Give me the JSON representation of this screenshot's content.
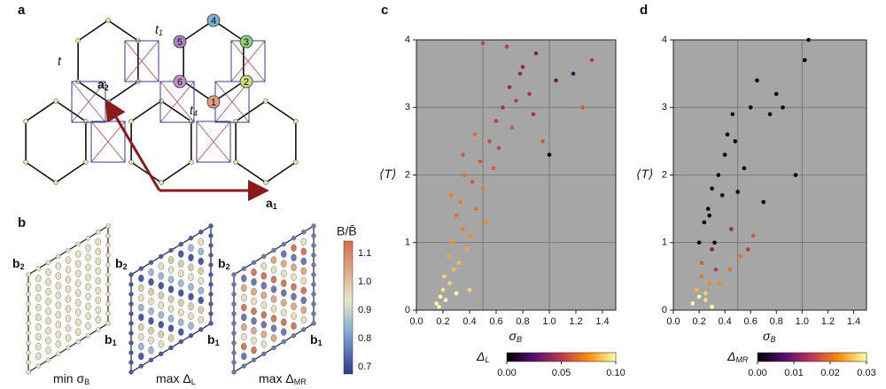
{
  "figure": {
    "panel_labels": [
      "a",
      "b",
      "c",
      "d"
    ]
  },
  "diagram_a": {
    "t": "t",
    "t1": {
      "main": "t",
      "sub": "1"
    },
    "t4": {
      "main": "t",
      "sub": "4"
    },
    "a1": {
      "main": "a",
      "sub": "1"
    },
    "a2": {
      "main": "a",
      "sub": "2"
    },
    "sites": [
      "1",
      "2",
      "3",
      "4",
      "5",
      "6"
    ]
  },
  "diagram_b": {
    "b2": {
      "main": "b",
      "sub": "2"
    },
    "b1": {
      "main": "b",
      "sub": "1"
    },
    "captions": [
      {
        "main": "min σ",
        "sub": "B"
      },
      {
        "main": "max Δ",
        "sub": "L"
      },
      {
        "main": "max Δ",
        "sub": "MR"
      }
    ],
    "colorbar_label": "B/B̄",
    "colorbar_ticks": [
      "1.1",
      "1.0",
      "0.9",
      "0.8",
      "0.7"
    ]
  },
  "chart_data": [
    {
      "type": "scatter",
      "x": [
        0.15,
        0.18,
        0.2,
        0.22,
        0.25,
        0.28,
        0.3,
        0.17,
        0.21,
        0.24,
        0.27,
        0.32,
        0.35,
        0.38,
        0.3,
        0.33,
        0.4,
        0.42,
        0.45,
        0.48,
        0.36,
        0.5,
        0.55,
        0.52,
        0.6,
        0.58,
        0.65,
        0.7,
        0.62,
        0.75,
        0.8,
        0.72,
        0.85,
        0.9,
        0.78,
        0.95,
        1.0,
        1.05,
        1.18,
        1.32,
        1.25,
        0.68,
        0.88,
        0.44,
        0.5,
        0.26,
        0.35,
        0.4
      ],
      "values": [
        0.1,
        0.2,
        0.3,
        0.15,
        0.4,
        0.6,
        0.25,
        0.05,
        0.5,
        0.8,
        1.0,
        0.7,
        1.2,
        0.9,
        1.4,
        1.6,
        1.1,
        1.9,
        1.5,
        2.2,
        2.0,
        1.8,
        2.5,
        1.3,
        2.8,
        2.1,
        3.0,
        3.3,
        2.4,
        3.1,
        3.6,
        2.7,
        3.2,
        3.8,
        3.5,
        2.5,
        2.3,
        3.4,
        3.5,
        3.7,
        3.0,
        3.9,
        2.9,
        2.6,
        3.95,
        1.7,
        2.3,
        0.3
      ],
      "color_values": [
        0.1,
        0.1,
        0.095,
        0.1,
        0.09,
        0.085,
        0.098,
        0.1,
        0.09,
        0.08,
        0.075,
        0.085,
        0.07,
        0.08,
        0.065,
        0.07,
        0.075,
        0.06,
        0.065,
        0.06,
        0.068,
        0.07,
        0.055,
        0.072,
        0.05,
        0.06,
        0.045,
        0.04,
        0.055,
        0.05,
        0.04,
        0.06,
        0.045,
        0.035,
        0.04,
        0.06,
        0.0,
        0.03,
        0.02,
        0.05,
        0.06,
        0.05,
        0.045,
        0.065,
        0.055,
        0.07,
        0.06,
        0.09
      ],
      "xlim": [
        0,
        1.5
      ],
      "ylim": [
        0,
        4
      ],
      "xticks": [
        {
          "value": 0,
          "label": "0.0"
        },
        0.2,
        0.4,
        0.6,
        0.8,
        {
          "value": 1,
          "label": "1.0"
        },
        1.2,
        1.4
      ],
      "yticks": [
        0,
        1,
        2,
        3,
        4
      ],
      "xgrid": [
        0.5,
        1
      ],
      "grid": true,
      "xlabel": {
        "main": "σ",
        "sub": "B"
      },
      "ylabel": "⟨T⟩",
      "colorbar": {
        "label": {
          "main": "Δ",
          "sub": "L"
        },
        "lim": [
          0,
          0.1
        ],
        "ticks": [
          {
            "value": 0,
            "label": "0.00"
          },
          0.05,
          {
            "value": 0.1,
            "label": "0.10"
          }
        ]
      }
    },
    {
      "type": "scatter",
      "x": [
        0.15,
        0.18,
        0.2,
        0.22,
        0.25,
        0.28,
        0.3,
        0.33,
        0.2,
        0.24,
        0.27,
        0.3,
        0.35,
        0.4,
        0.38,
        0.42,
        0.45,
        0.5,
        0.55,
        0.6,
        0.48,
        0.65,
        0.7,
        0.75,
        0.8,
        0.52,
        0.85,
        0.62,
        1.02,
        1.05,
        0.95,
        0.44,
        0.36,
        0.28,
        0.25,
        0.58,
        0.46,
        0.3,
        0.22,
        0.32
      ],
      "values": [
        0.1,
        0.3,
        0.2,
        0.5,
        0.15,
        0.4,
        0.9,
        0.6,
        1.0,
        1.3,
        1.5,
        1.8,
        2.0,
        2.3,
        1.7,
        2.6,
        1.2,
        1.75,
        2.1,
        3.0,
        2.5,
        3.4,
        1.6,
        2.9,
        3.2,
        0.8,
        3.0,
        1.1,
        3.7,
        4.0,
        2.0,
        0.6,
        0.4,
        1.4,
        0.25,
        0.9,
        2.9,
        0.05,
        0.7,
        1.0
      ],
      "color_values": [
        0.03,
        0.025,
        0.03,
        0.02,
        0.028,
        0.022,
        0.01,
        0.015,
        0,
        0,
        0,
        0,
        0,
        0,
        0,
        0,
        0.012,
        0,
        0,
        0,
        0,
        0,
        0,
        0,
        0,
        0.02,
        0,
        0.018,
        0,
        0,
        0,
        0.02,
        0.022,
        0,
        0.027,
        0.015,
        0,
        0.03,
        0.018,
        0
      ],
      "xlim": [
        0,
        1.5
      ],
      "ylim": [
        0,
        4
      ],
      "xticks": [
        {
          "value": 0,
          "label": "0.0"
        },
        0.2,
        0.4,
        0.6,
        0.8,
        {
          "value": 1,
          "label": "1.0"
        },
        1.2,
        1.4
      ],
      "yticks": [
        0,
        1,
        2,
        3,
        4
      ],
      "xgrid": [
        0.5,
        1
      ],
      "grid": true,
      "xlabel": {
        "main": "σ",
        "sub": "B"
      },
      "ylabel": "⟨T⟩",
      "colorbar": {
        "label": {
          "main": "Δ",
          "sub": "MR"
        },
        "lim": [
          0,
          0.03
        ],
        "ticks": [
          {
            "value": 0,
            "label": "0.00"
          },
          0.01,
          0.02,
          0.03
        ]
      }
    }
  ]
}
